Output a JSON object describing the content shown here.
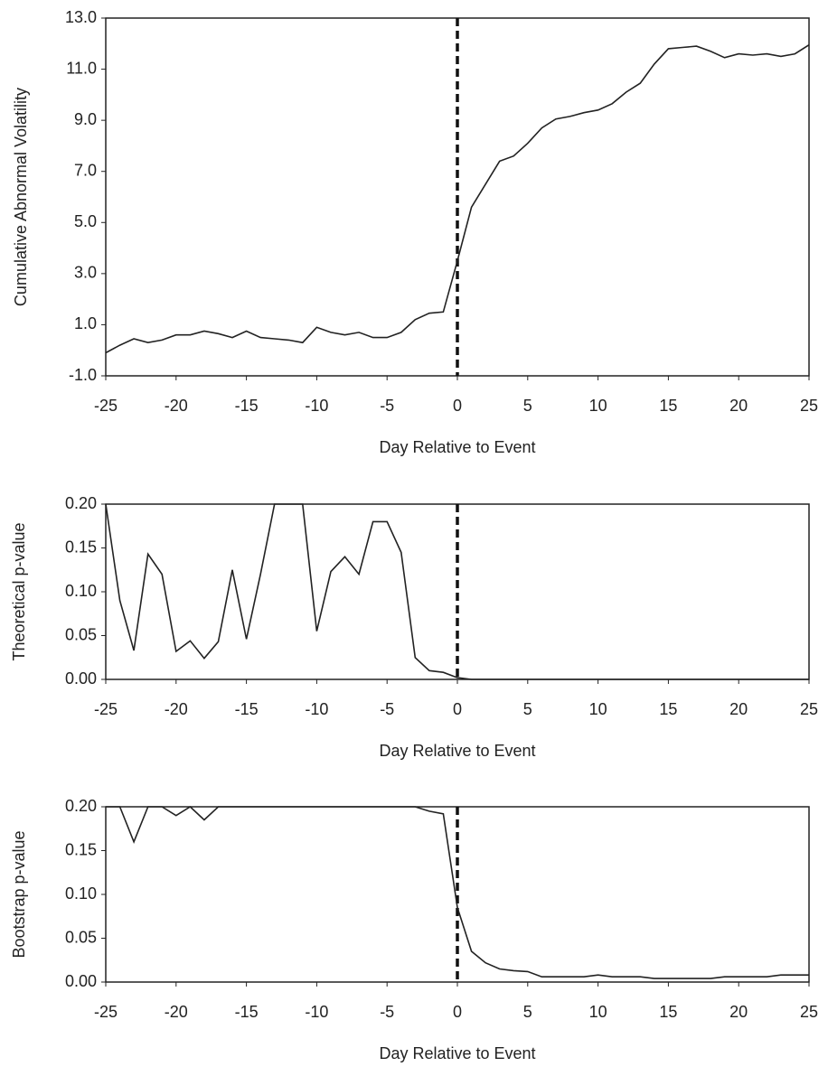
{
  "chart_data": [
    {
      "type": "line",
      "ylabel": "Cumulative Abnormal  Volatility",
      "xlabel": "Day Relative to Event",
      "x": [
        -25,
        -24,
        -23,
        -22,
        -21,
        -20,
        -19,
        -18,
        -17,
        -16,
        -15,
        -14,
        -13,
        -12,
        -11,
        -10,
        -9,
        -8,
        -7,
        -6,
        -5,
        -4,
        -3,
        -2,
        -1,
        0,
        1,
        2,
        3,
        4,
        5,
        6,
        7,
        8,
        9,
        10,
        11,
        12,
        13,
        14,
        15,
        16,
        17,
        18,
        19,
        20,
        21,
        22,
        23,
        24,
        25
      ],
      "series": [
        {
          "color": "#222222",
          "values": [
            -0.1,
            0.2,
            0.45,
            0.3,
            0.4,
            0.6,
            0.6,
            0.75,
            0.65,
            0.5,
            0.75,
            0.5,
            0.45,
            0.4,
            0.3,
            0.9,
            0.7,
            0.6,
            0.7,
            0.5,
            0.5,
            0.7,
            1.2,
            1.45,
            1.5,
            3.5,
            5.6,
            6.5,
            7.4,
            7.6,
            8.1,
            8.7,
            9.05,
            9.15,
            9.3,
            9.4,
            9.65,
            10.1,
            10.45,
            11.2,
            11.8,
            11.85,
            11.9,
            11.7,
            11.45,
            11.6,
            11.55,
            11.6,
            11.5,
            11.6,
            11.95
          ]
        }
      ],
      "xlim": [
        -25,
        25
      ],
      "xticks": [
        -25,
        -20,
        -15,
        -10,
        -5,
        0,
        5,
        10,
        15,
        20,
        25
      ],
      "ylim": [
        -1,
        13
      ],
      "yticks": [
        {
          "value": -1,
          "label": "-1.0"
        },
        {
          "value": 1,
          "label": "1.0"
        },
        {
          "value": 3,
          "label": "3.0"
        },
        {
          "value": 5,
          "label": "5.0"
        },
        {
          "value": 7,
          "label": "7.0"
        },
        {
          "value": 9,
          "label": "9.0"
        },
        {
          "value": 11,
          "label": "11.0"
        },
        {
          "value": 13,
          "label": "13.0"
        }
      ],
      "vline": 0
    },
    {
      "type": "line",
      "ylabel": "Theoretical p-value",
      "xlabel": "Day Relative to Event",
      "x": [
        -25,
        -24,
        -23,
        -22,
        -21,
        -20,
        -19,
        -18,
        -17,
        -16,
        -15,
        -14,
        -13,
        -12,
        -11,
        -10,
        -9,
        -8,
        -7,
        -6,
        -5,
        -4,
        -3,
        -2,
        -1,
        0,
        1,
        2,
        3,
        4,
        5,
        6,
        7,
        8,
        9,
        10,
        11,
        12,
        13,
        14,
        15,
        16,
        17,
        18,
        19,
        20,
        21,
        22,
        23,
        24,
        25
      ],
      "series": [
        {
          "color": "#222222",
          "values": [
            0.2,
            0.09,
            0.033,
            0.143,
            0.12,
            0.032,
            0.044,
            0.024,
            0.043,
            0.125,
            0.046,
            0.12,
            0.2,
            0.2,
            0.2,
            0.055,
            0.123,
            0.14,
            0.12,
            0.18,
            0.18,
            0.145,
            0.025,
            0.01,
            0.008,
            0.002,
            0,
            0,
            0,
            0,
            0,
            0,
            0,
            0,
            0,
            0,
            0,
            0,
            0,
            0,
            0,
            0,
            0,
            0,
            0,
            0,
            0,
            0,
            0,
            0,
            0
          ]
        }
      ],
      "xlim": [
        -25,
        25
      ],
      "xticks": [
        -25,
        -20,
        -15,
        -10,
        -5,
        0,
        5,
        10,
        15,
        20,
        25
      ],
      "ylim": [
        0,
        0.2
      ],
      "yticks": [
        {
          "value": 0,
          "label": "0.00"
        },
        {
          "value": 0.05,
          "label": "0.05"
        },
        {
          "value": 0.1,
          "label": "0.10"
        },
        {
          "value": 0.15,
          "label": "0.15"
        },
        {
          "value": 0.2,
          "label": "0.20"
        }
      ],
      "vline": 0
    },
    {
      "type": "line",
      "ylabel": "Bootstrap p-value",
      "xlabel": "Day Relative to Event",
      "x": [
        -25,
        -24,
        -23,
        -22,
        -21,
        -20,
        -19,
        -18,
        -17,
        -16,
        -15,
        -14,
        -13,
        -12,
        -11,
        -10,
        -9,
        -8,
        -7,
        -6,
        -5,
        -4,
        -3,
        -2,
        -1,
        0,
        1,
        2,
        3,
        4,
        5,
        6,
        7,
        8,
        9,
        10,
        11,
        12,
        13,
        14,
        15,
        16,
        17,
        18,
        19,
        20,
        21,
        22,
        23,
        24,
        25
      ],
      "series": [
        {
          "color": "#222222",
          "values": [
            0.2,
            0.2,
            0.16,
            0.2,
            0.2,
            0.19,
            0.2,
            0.185,
            0.2,
            0.2,
            0.2,
            0.2,
            0.2,
            0.2,
            0.2,
            0.2,
            0.2,
            0.2,
            0.2,
            0.2,
            0.2,
            0.2,
            0.2,
            0.195,
            0.192,
            0.085,
            0.035,
            0.022,
            0.015,
            0.013,
            0.012,
            0.006,
            0.006,
            0.006,
            0.006,
            0.008,
            0.006,
            0.006,
            0.006,
            0.004,
            0.004,
            0.004,
            0.004,
            0.004,
            0.006,
            0.006,
            0.006,
            0.006,
            0.008,
            0.008,
            0.008
          ]
        }
      ],
      "xlim": [
        -25,
        25
      ],
      "xticks": [
        -25,
        -20,
        -15,
        -10,
        -5,
        0,
        5,
        10,
        15,
        20,
        25
      ],
      "ylim": [
        0,
        0.2
      ],
      "yticks": [
        {
          "value": 0,
          "label": "0.00"
        },
        {
          "value": 0.05,
          "label": "0.05"
        },
        {
          "value": 0.1,
          "label": "0.10"
        },
        {
          "value": 0.15,
          "label": "0.15"
        },
        {
          "value": 0.2,
          "label": "0.20"
        }
      ],
      "vline": 0
    }
  ]
}
